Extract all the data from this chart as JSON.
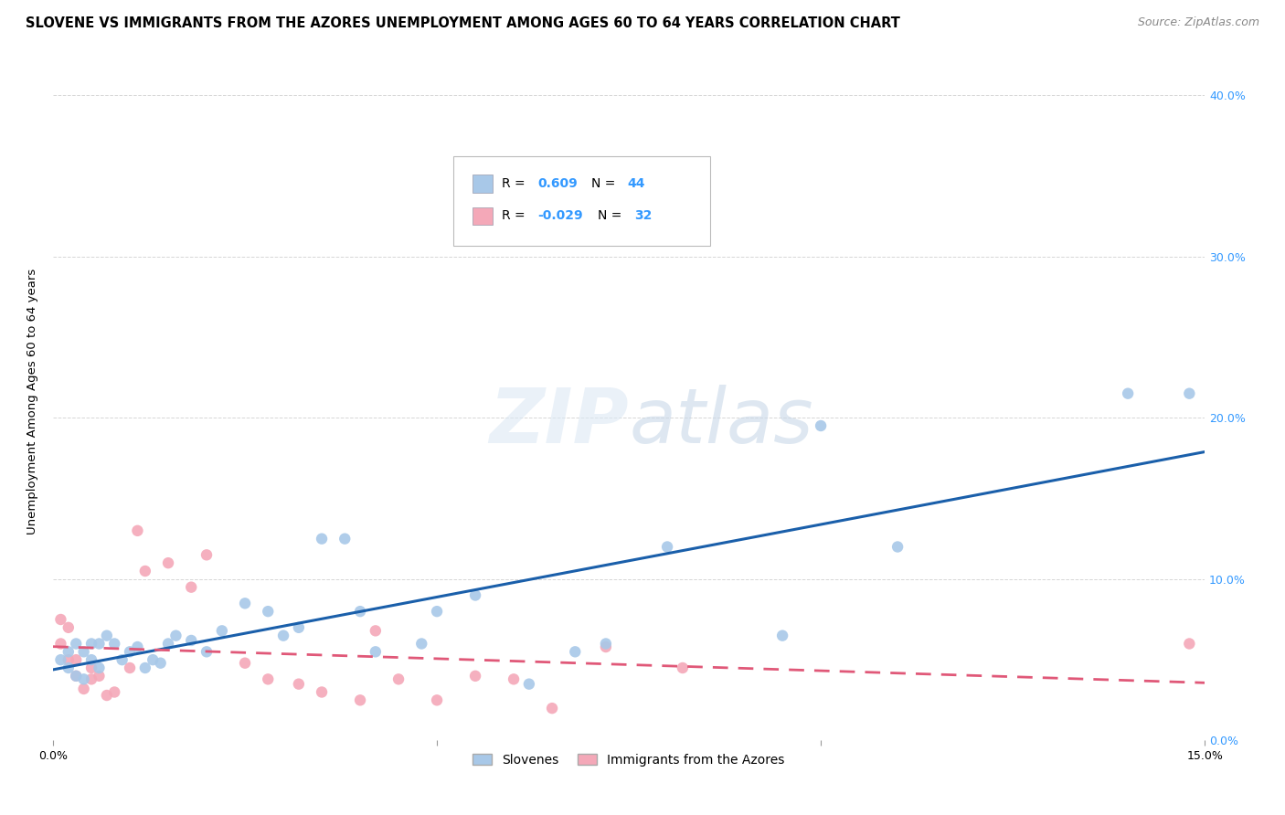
{
  "title": "SLOVENE VS IMMIGRANTS FROM THE AZORES UNEMPLOYMENT AMONG AGES 60 TO 64 YEARS CORRELATION CHART",
  "source": "Source: ZipAtlas.com",
  "ylabel": "Unemployment Among Ages 60 to 64 years",
  "xlim": [
    0.0,
    0.15
  ],
  "ylim": [
    0.0,
    0.42
  ],
  "xticks": [
    0.0,
    0.05,
    0.1,
    0.15
  ],
  "yticks": [
    0.0,
    0.1,
    0.2,
    0.3,
    0.4
  ],
  "xtick_labels": [
    "0.0%",
    "",
    "",
    "15.0%"
  ],
  "ytick_labels_right": [
    "0.0%",
    "10.0%",
    "20.0%",
    "30.0%",
    "40.0%"
  ],
  "legend_labels": [
    "Slovenes",
    "Immigrants from the Azores"
  ],
  "blue_color": "#a8c8e8",
  "pink_color": "#f4a8b8",
  "blue_line_color": "#1a5faa",
  "pink_line_color": "#e05878",
  "grid_color": "#cccccc",
  "bg_color": "#ffffff",
  "slovene_x": [
    0.001,
    0.002,
    0.002,
    0.003,
    0.003,
    0.004,
    0.004,
    0.005,
    0.005,
    0.006,
    0.006,
    0.007,
    0.008,
    0.009,
    0.01,
    0.011,
    0.012,
    0.013,
    0.014,
    0.015,
    0.016,
    0.018,
    0.02,
    0.022,
    0.025,
    0.028,
    0.03,
    0.032,
    0.035,
    0.038,
    0.04,
    0.042,
    0.048,
    0.05,
    0.055,
    0.062,
    0.068,
    0.072,
    0.08,
    0.095,
    0.1,
    0.11,
    0.14,
    0.148
  ],
  "slovene_y": [
    0.05,
    0.045,
    0.055,
    0.04,
    0.06,
    0.038,
    0.055,
    0.05,
    0.06,
    0.045,
    0.06,
    0.065,
    0.06,
    0.05,
    0.055,
    0.058,
    0.045,
    0.05,
    0.048,
    0.06,
    0.065,
    0.062,
    0.055,
    0.068,
    0.085,
    0.08,
    0.065,
    0.07,
    0.125,
    0.125,
    0.08,
    0.055,
    0.06,
    0.08,
    0.09,
    0.035,
    0.055,
    0.06,
    0.12,
    0.065,
    0.195,
    0.12,
    0.215,
    0.215
  ],
  "azores_x": [
    0.001,
    0.001,
    0.002,
    0.002,
    0.003,
    0.003,
    0.004,
    0.005,
    0.005,
    0.006,
    0.007,
    0.008,
    0.01,
    0.011,
    0.012,
    0.015,
    0.018,
    0.02,
    0.025,
    0.028,
    0.032,
    0.035,
    0.04,
    0.042,
    0.045,
    0.05,
    0.055,
    0.06,
    0.065,
    0.072,
    0.082,
    0.148
  ],
  "azores_y": [
    0.06,
    0.075,
    0.05,
    0.07,
    0.04,
    0.05,
    0.032,
    0.038,
    0.045,
    0.04,
    0.028,
    0.03,
    0.045,
    0.13,
    0.105,
    0.11,
    0.095,
    0.115,
    0.048,
    0.038,
    0.035,
    0.03,
    0.025,
    0.068,
    0.038,
    0.025,
    0.04,
    0.038,
    0.02,
    0.058,
    0.045,
    0.06
  ],
  "marker_size": 80,
  "title_fontsize": 10.5,
  "axis_label_fontsize": 9.5,
  "tick_fontsize": 9,
  "source_fontsize": 9
}
